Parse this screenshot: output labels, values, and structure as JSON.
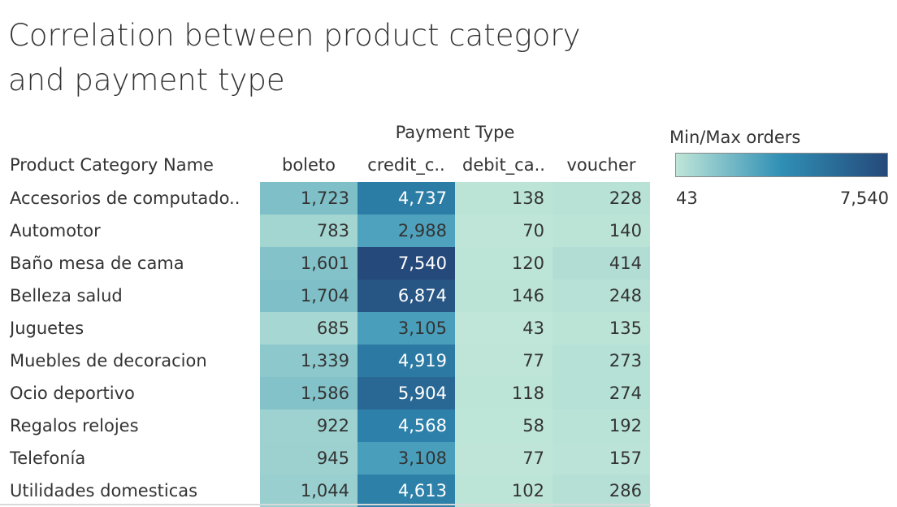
{
  "title": "Correlation between product category and payment type",
  "chart_data": {
    "type": "heatmap",
    "column_group_label": "Payment Type",
    "row_header": "Product Category Name",
    "columns": [
      "boleto",
      "credit_c..",
      "debit_ca..",
      "voucher"
    ],
    "rows": [
      "Accesorios de computado..",
      "Automotor",
      "Baño mesa de cama",
      "Belleza salud",
      "Juguetes",
      "Muebles de decoracion",
      "Ocio deportivo",
      "Regalos relojes",
      "Telefonía",
      "Utilidades domesticas"
    ],
    "values": [
      [
        1723,
        4737,
        138,
        228
      ],
      [
        783,
        2988,
        70,
        140
      ],
      [
        1601,
        7540,
        120,
        414
      ],
      [
        1704,
        6874,
        146,
        248
      ],
      [
        685,
        3105,
        43,
        135
      ],
      [
        1339,
        4919,
        77,
        273
      ],
      [
        1586,
        5904,
        118,
        274
      ],
      [
        922,
        4568,
        58,
        192
      ],
      [
        945,
        3108,
        77,
        157
      ],
      [
        1044,
        4613,
        102,
        286
      ]
    ],
    "display_values": [
      [
        "1,723",
        "4,737",
        "138",
        "228"
      ],
      [
        "783",
        "2,988",
        "70",
        "140"
      ],
      [
        "1,601",
        "7,540",
        "120",
        "414"
      ],
      [
        "1,704",
        "6,874",
        "146",
        "248"
      ],
      [
        "685",
        "3,105",
        "43",
        "135"
      ],
      [
        "1,339",
        "4,919",
        "77",
        "273"
      ],
      [
        "1,586",
        "5,904",
        "118",
        "274"
      ],
      [
        "922",
        "4,568",
        "58",
        "192"
      ],
      [
        "945",
        "3,108",
        "77",
        "157"
      ],
      [
        "1,044",
        "4,613",
        "102",
        "286"
      ]
    ],
    "legend": {
      "title": "Min/Max orders",
      "min": 43,
      "max": 7540,
      "min_label": "43",
      "max_label": "7,540",
      "color_stops": [
        "#bfe6d8",
        "#2f8fb5",
        "#25497a"
      ]
    }
  }
}
